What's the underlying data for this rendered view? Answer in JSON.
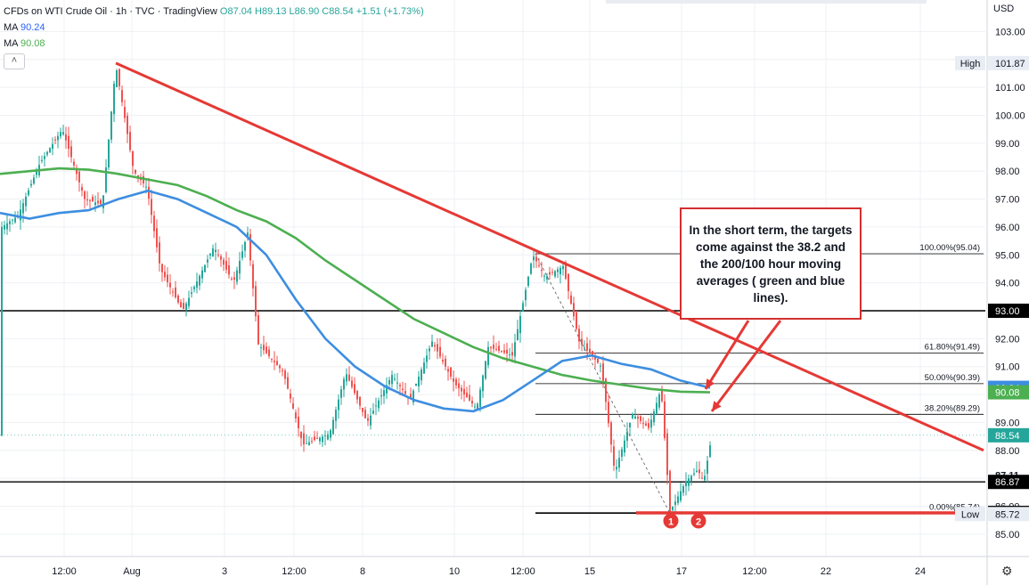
{
  "header": {
    "title": "CFDs on WTI Crude Oil · 1h · TVC · TradingView",
    "ohlc": "O87.04 H89.13 L86.90 C88.54 +1.51 (+1.73%)",
    "ma1_label": "MA",
    "ma1_value": "90.24",
    "ma2_label": "MA",
    "ma2_value": "90.08",
    "currency": "USD",
    "settings_icon": "gear-icon",
    "collapse_icon": "chevron-up-icon"
  },
  "callout": {
    "text": "In the short term, the targets come against the 38.2 and the 200/100 hour moving averages ( green and blue lines)."
  },
  "colors": {
    "up": "#26a69a",
    "down": "#ef5350",
    "trend": "#e53935",
    "ma100": "#3d8ee0",
    "ma200": "#4caf50",
    "level": "#000000",
    "fib": "#000000",
    "red_level": "#e53935"
  },
  "chart_data": {
    "type": "line",
    "title": "CFDs on WTI Crude Oil · 1h · TVC · TradingView",
    "ylim": [
      84.9,
      103.3
    ],
    "y_ticks": [
      "103.00",
      "102.00",
      "101.00",
      "100.00",
      "99.00",
      "98.00",
      "97.00",
      "96.00",
      "95.00",
      "94.00",
      "93.00",
      "92.00",
      "91.00",
      "90.00",
      "89.00",
      "88.00",
      "87.00",
      "86.00",
      "85.00"
    ],
    "x_ticks": [
      "12:00",
      "Aug",
      "3",
      "12:00",
      "8",
      "10",
      "12:00",
      "15",
      "17",
      "12:00",
      "22",
      "24"
    ],
    "price_labels": [
      {
        "label": "High",
        "value": "101.87"
      },
      {
        "label": "",
        "value": "93.00"
      },
      {
        "label": "",
        "value": "90.24"
      },
      {
        "label": "",
        "value": "90.08"
      },
      {
        "label": "",
        "value": "88.54"
      },
      {
        "label": "",
        "value": "87.11"
      },
      {
        "label": "",
        "value": "86.87"
      },
      {
        "label": "",
        "value": "85.76"
      },
      {
        "label": "Low",
        "value": "85.72"
      }
    ],
    "horizontal_levels": [
      93.0,
      86.87
    ],
    "red_level": 85.76,
    "fib_levels": [
      {
        "label": "100.00%(95.04)",
        "value": 95.04
      },
      {
        "label": "61.80%(91.49)",
        "value": 91.49
      },
      {
        "label": "50.00%(90.39)",
        "value": 90.39
      },
      {
        "label": "38.20%(89.29)",
        "value": 89.29
      },
      {
        "label": "0.00%(85.74)",
        "value": 85.74
      }
    ],
    "series": [
      {
        "name": "MA",
        "values": [
          97.9,
          98.0,
          98.1,
          98.05,
          97.9,
          97.7,
          97.5,
          97.1,
          96.6,
          96.2,
          95.6,
          94.8,
          94.1,
          93.4,
          92.7,
          92.2,
          91.7,
          91.3,
          91.0,
          90.7,
          90.5,
          90.35,
          90.2,
          90.1,
          90.08
        ]
      },
      {
        "name": "MA",
        "values": [
          96.5,
          96.3,
          96.5,
          96.6,
          97.0,
          97.3,
          97.0,
          96.5,
          96.0,
          95.0,
          93.4,
          92.0,
          91.0,
          90.3,
          89.8,
          89.5,
          89.4,
          89.8,
          90.5,
          91.2,
          91.4,
          91.1,
          90.9,
          90.5,
          90.24
        ]
      }
    ],
    "markers": [
      "1",
      "2"
    ]
  }
}
